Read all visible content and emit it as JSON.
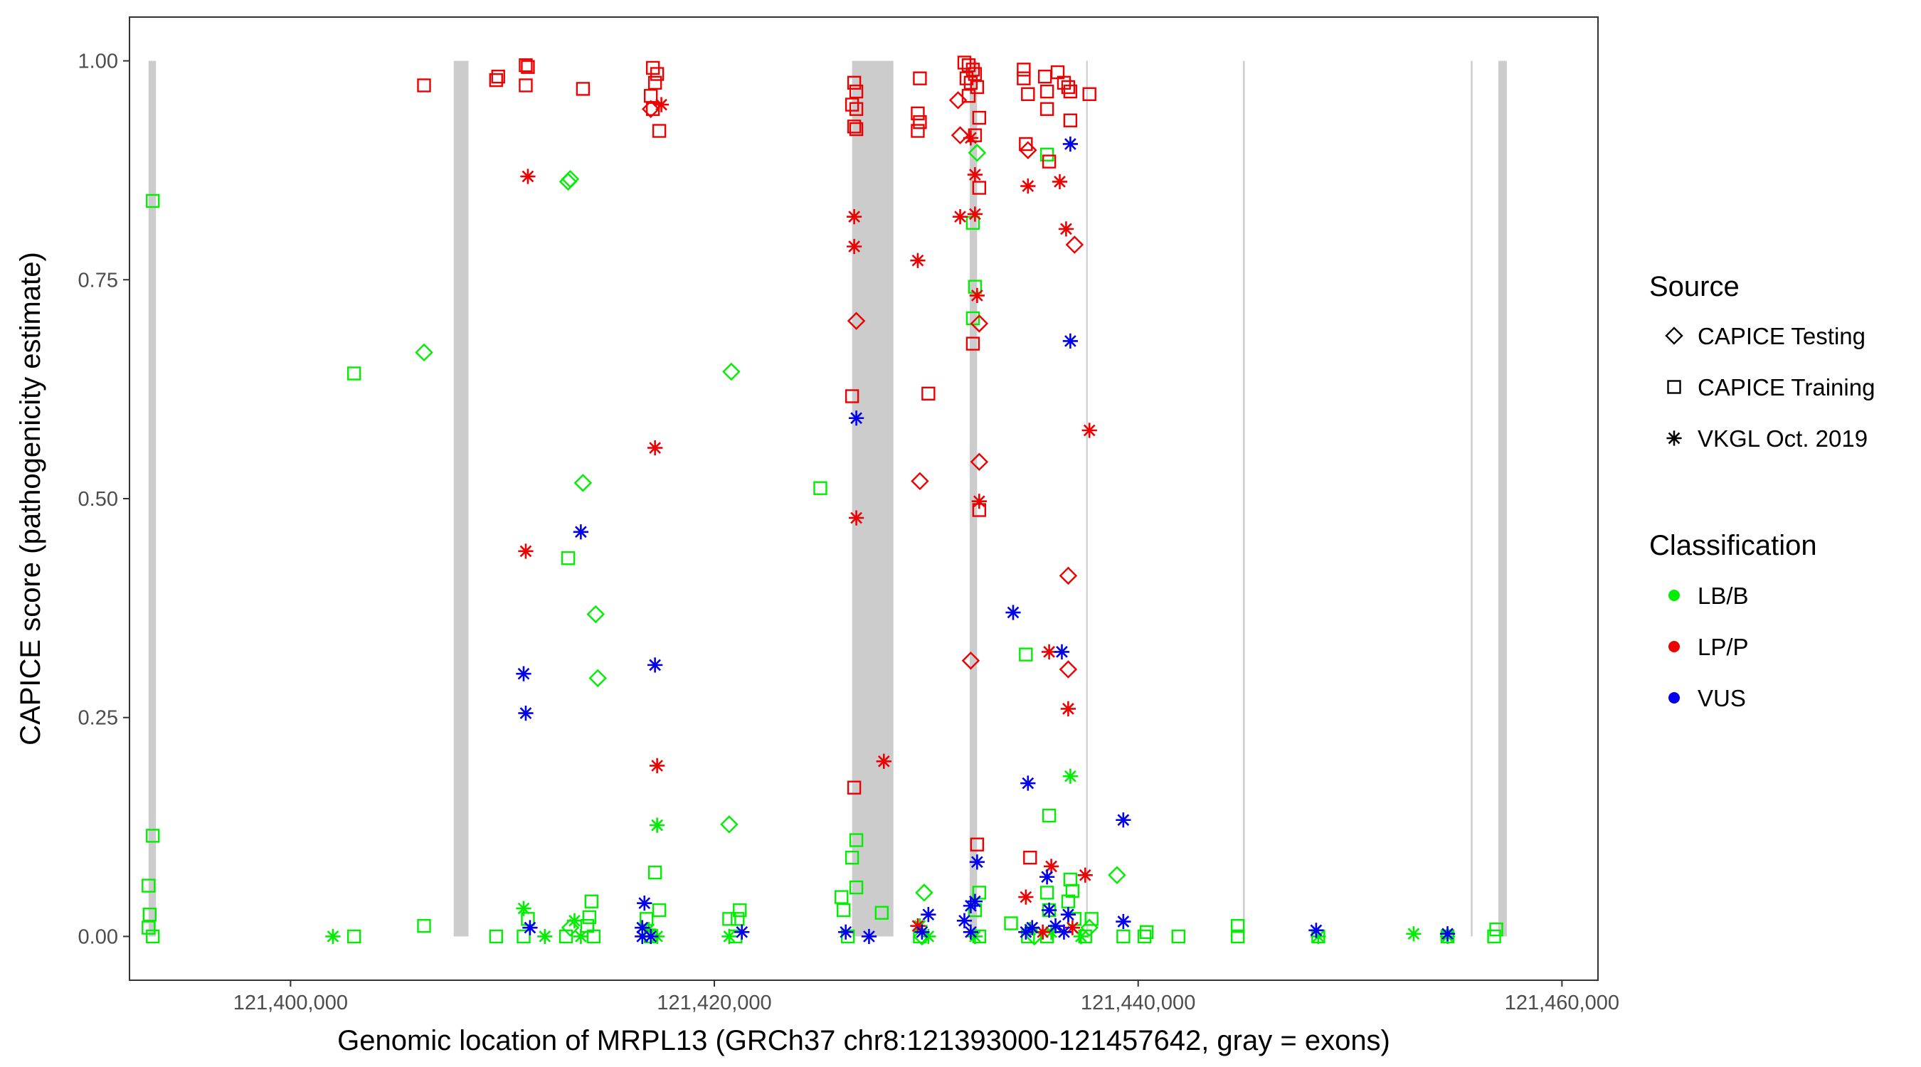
{
  "chart_data": {
    "type": "scatter",
    "title": "",
    "xlabel": "Genomic location of MRPL13 (GRCh37 chr8:121393000-121457642, gray = exons)",
    "ylabel": "CAPICE score (pathogenicity estimate)",
    "xlim": [
      121392400,
      121461700
    ],
    "ylim": [
      -0.05,
      1.05
    ],
    "grid": false,
    "x_ticks": [
      121400000,
      121420000,
      121440000,
      121460000
    ],
    "x_tick_labels": [
      "121,400,000",
      "121,420,000",
      "121,440,000",
      "121,460,000"
    ],
    "y_ticks": [
      0,
      0.25,
      0.5,
      0.75,
      1.0
    ],
    "y_tick_labels": [
      "0.00",
      "0.25",
      "0.50",
      "0.75",
      "1.00"
    ],
    "exons": [
      [
        121393300,
        121393650
      ],
      [
        121407700,
        121408400
      ],
      [
        121426500,
        121428450
      ],
      [
        121432050,
        121432400
      ],
      [
        121437550,
        121437620
      ],
      [
        121444950,
        121445030
      ],
      [
        121455700,
        121455780
      ],
      [
        121457000,
        121457400
      ]
    ],
    "colors": {
      "LB/B": "#00ee00",
      "LP/P": "#ee0000",
      "VUS": "#0000ee",
      "exon": "#cccccc"
    },
    "legend": {
      "position": "right",
      "source_title": "Source",
      "source_items": [
        {
          "label": "CAPICE Testing",
          "shape": "diamond"
        },
        {
          "label": "CAPICE Training",
          "shape": "square"
        },
        {
          "label": "VKGL Oct. 2019",
          "shape": "asterisk"
        }
      ],
      "class_title": "Classification",
      "class_items": [
        {
          "label": "LB/B",
          "color": "#00ee00"
        },
        {
          "label": "LP/P",
          "color": "#ee0000"
        },
        {
          "label": "VUS",
          "color": "#0000ee"
        }
      ]
    },
    "series": [
      {
        "name": "LB/B CAPICE Training",
        "classification": "LB/B",
        "source": "CAPICE Training",
        "points": [
          [
            121393500,
            0.84
          ],
          [
            121393500,
            0.115
          ],
          [
            121393300,
            0.058
          ],
          [
            121393350,
            0.025
          ],
          [
            121393300,
            0.01
          ],
          [
            121393500,
            0
          ],
          [
            121403000,
            0.643
          ],
          [
            121403000,
            0
          ],
          [
            121406300,
            0.012
          ],
          [
            121409700,
            0
          ],
          [
            121411200,
            0.02
          ],
          [
            121411000,
            0
          ],
          [
            121413100,
            0.432
          ],
          [
            121413000,
            0
          ],
          [
            121414200,
            0.04
          ],
          [
            121414100,
            0.022
          ],
          [
            121414000,
            0.012
          ],
          [
            121414300,
            0
          ],
          [
            121416800,
            0.02
          ],
          [
            121417200,
            0.073
          ],
          [
            121417400,
            0.03
          ],
          [
            121417000,
            0
          ],
          [
            121420700,
            0.02
          ],
          [
            121421200,
            0.03
          ],
          [
            121421100,
            0.02
          ],
          [
            121421000,
            0
          ],
          [
            121425000,
            0.512
          ],
          [
            121426000,
            0.045
          ],
          [
            121426100,
            0.03
          ],
          [
            121426500,
            0.09
          ],
          [
            121426700,
            0.11
          ],
          [
            121426700,
            0.056
          ],
          [
            121426300,
            0
          ],
          [
            121427900,
            0.027
          ],
          [
            121429700,
            0
          ],
          [
            121432200,
            0.815
          ],
          [
            121432300,
            0.742
          ],
          [
            121432200,
            0.706
          ],
          [
            121432500,
            0.05
          ],
          [
            121432300,
            0.03
          ],
          [
            121432500,
            0
          ],
          [
            121434000,
            0.015
          ],
          [
            121434700,
            0.322
          ],
          [
            121434800,
            0
          ],
          [
            121435700,
            0.893
          ],
          [
            121435800,
            0.138
          ],
          [
            121435700,
            0.05
          ],
          [
            121435800,
            0.03
          ],
          [
            121435700,
            0
          ],
          [
            121436800,
            0.065
          ],
          [
            121436900,
            0.052
          ],
          [
            121436700,
            0.04
          ],
          [
            121437000,
            0.02
          ],
          [
            121437800,
            0.02
          ],
          [
            121437500,
            0
          ],
          [
            121439300,
            0
          ],
          [
            121440300,
            0
          ],
          [
            121440400,
            0.005
          ],
          [
            121441900,
            0
          ],
          [
            121444700,
            0.012
          ],
          [
            121444700,
            0
          ],
          [
            121448500,
            0
          ],
          [
            121454600,
            0
          ],
          [
            121456900,
            0.008
          ],
          [
            121456800,
            0
          ]
        ]
      },
      {
        "name": "LB/B CAPICE Testing",
        "classification": "LB/B",
        "source": "CAPICE Testing",
        "points": [
          [
            121406300,
            0.667
          ],
          [
            121413100,
            0.862
          ],
          [
            121413200,
            0.865
          ],
          [
            121414400,
            0.368
          ],
          [
            121414500,
            0.295
          ],
          [
            121413800,
            0.518
          ],
          [
            121413200,
            0.01
          ],
          [
            121420700,
            0.128
          ],
          [
            121420800,
            0.645
          ],
          [
            121429900,
            0.05
          ],
          [
            121429800,
            0
          ],
          [
            121432400,
            0.895
          ],
          [
            121439000,
            0.07
          ],
          [
            121437700,
            0.01
          ],
          [
            121435100,
            0
          ]
        ]
      },
      {
        "name": "LB/B VKGL Oct. 2019",
        "classification": "LB/B",
        "source": "VKGL Oct. 2019",
        "points": [
          [
            121402000,
            0
          ],
          [
            121411000,
            0.032
          ],
          [
            121412000,
            0
          ],
          [
            121413400,
            0.018
          ],
          [
            121413700,
            0
          ],
          [
            121416900,
            0.008
          ],
          [
            121417300,
            0.127
          ],
          [
            121417300,
            0
          ],
          [
            121420700,
            0
          ],
          [
            121429700,
            0.012
          ],
          [
            121430100,
            0
          ],
          [
            121432300,
            0
          ],
          [
            121434900,
            0.008
          ],
          [
            121435900,
            0.005
          ],
          [
            121436800,
            0.183
          ],
          [
            121437300,
            0
          ],
          [
            121448500,
            0
          ],
          [
            121453000,
            0.003
          ],
          [
            121454600,
            0
          ]
        ]
      },
      {
        "name": "LP/P CAPICE Training",
        "classification": "LP/P",
        "source": "CAPICE Training",
        "points": [
          [
            121406300,
            0.972
          ],
          [
            121409700,
            0.978
          ],
          [
            121409800,
            0.982
          ],
          [
            121411100,
            0.995
          ],
          [
            121411200,
            0.993
          ],
          [
            121411100,
            0.972
          ],
          [
            121413800,
            0.968
          ],
          [
            121417100,
            0.992
          ],
          [
            121417300,
            0.985
          ],
          [
            121417200,
            0.975
          ],
          [
            121417000,
            0.96
          ],
          [
            121417100,
            0.945
          ],
          [
            121417400,
            0.92
          ],
          [
            121426600,
            0.975
          ],
          [
            121426700,
            0.965
          ],
          [
            121426500,
            0.95
          ],
          [
            121426700,
            0.945
          ],
          [
            121426600,
            0.925
          ],
          [
            121426700,
            0.922
          ],
          [
            121426500,
            0.617
          ],
          [
            121426600,
            0.17
          ],
          [
            121429700,
            0.98
          ],
          [
            121429600,
            0.94
          ],
          [
            121429700,
            0.93
          ],
          [
            121429600,
            0.92
          ],
          [
            121430100,
            0.62
          ],
          [
            121431800,
            0.998
          ],
          [
            121432000,
            0.995
          ],
          [
            121432200,
            0.99
          ],
          [
            121432300,
            0.985
          ],
          [
            121431900,
            0.98
          ],
          [
            121432100,
            0.975
          ],
          [
            121432400,
            0.97
          ],
          [
            121432000,
            0.96
          ],
          [
            121432500,
            0.935
          ],
          [
            121432300,
            0.915
          ],
          [
            121432500,
            0.855
          ],
          [
            121432200,
            0.677
          ],
          [
            121432400,
            0.105
          ],
          [
            121432500,
            0.487
          ],
          [
            121434600,
            0.99
          ],
          [
            121434600,
            0.98
          ],
          [
            121435600,
            0.982
          ],
          [
            121435700,
            0.965
          ],
          [
            121434800,
            0.962
          ],
          [
            121435700,
            0.945
          ],
          [
            121434700,
            0.905
          ],
          [
            121435800,
            0.885
          ],
          [
            121436200,
            0.987
          ],
          [
            121436500,
            0.975
          ],
          [
            121436700,
            0.97
          ],
          [
            121436800,
            0.965
          ],
          [
            121437700,
            0.962
          ],
          [
            121436800,
            0.932
          ],
          [
            121434900,
            0.09
          ]
        ]
      },
      {
        "name": "LP/P CAPICE Testing",
        "classification": "LP/P",
        "source": "CAPICE Testing",
        "points": [
          [
            121417000,
            0.945
          ],
          [
            121426700,
            0.703
          ],
          [
            121429700,
            0.52
          ],
          [
            121431500,
            0.955
          ],
          [
            121431600,
            0.915
          ],
          [
            121432100,
            0.315
          ],
          [
            121432500,
            0.7
          ],
          [
            121432500,
            0.542
          ],
          [
            121434800,
            0.898
          ],
          [
            121436700,
            0.412
          ],
          [
            121436700,
            0.305
          ],
          [
            121437000,
            0.79
          ]
        ]
      },
      {
        "name": "LP/P VKGL Oct. 2019",
        "classification": "LP/P",
        "source": "VKGL Oct. 2019",
        "points": [
          [
            121411200,
            0.868
          ],
          [
            121411100,
            0.44
          ],
          [
            121417200,
            0.558
          ],
          [
            121417300,
            0.195
          ],
          [
            121417500,
            0.95
          ],
          [
            121426600,
            0.822
          ],
          [
            121426600,
            0.788
          ],
          [
            121426700,
            0.478
          ],
          [
            121429600,
            0.772
          ],
          [
            121428000,
            0.2
          ],
          [
            121429600,
            0.012
          ],
          [
            121431600,
            0.822
          ],
          [
            121432100,
            0.912
          ],
          [
            121432300,
            0.825
          ],
          [
            121432300,
            0.87
          ],
          [
            121432400,
            0.732
          ],
          [
            121432500,
            0.497
          ],
          [
            121434800,
            0.857
          ],
          [
            121435800,
            0.325
          ],
          [
            121434700,
            0.045
          ],
          [
            121435900,
            0.08
          ],
          [
            121436300,
            0.862
          ],
          [
            121436600,
            0.808
          ],
          [
            121436700,
            0.26
          ],
          [
            121437500,
            0.07
          ],
          [
            121437700,
            0.578
          ],
          [
            121435500,
            0.005
          ],
          [
            121436900,
            0.01
          ]
        ]
      },
      {
        "name": "VUS VKGL Oct. 2019",
        "classification": "VUS",
        "source": "VKGL Oct. 2019",
        "points": [
          [
            121411000,
            0.3
          ],
          [
            121411100,
            0.255
          ],
          [
            121411300,
            0.01
          ],
          [
            121413700,
            0.462
          ],
          [
            121416700,
            0.038
          ],
          [
            121417200,
            0.31
          ],
          [
            121416600,
            0.01
          ],
          [
            121416600,
            0
          ],
          [
            121417000,
            0
          ],
          [
            121421300,
            0.005
          ],
          [
            121426200,
            0.005
          ],
          [
            121427300,
            0
          ],
          [
            121429800,
            0.005
          ],
          [
            121430100,
            0.025
          ],
          [
            121431800,
            0.018
          ],
          [
            121432100,
            0.035
          ],
          [
            121432300,
            0.04
          ],
          [
            121432400,
            0.085
          ],
          [
            121432100,
            0.005
          ],
          [
            121426700,
            0.592
          ],
          [
            121434100,
            0.37
          ],
          [
            121434800,
            0.175
          ],
          [
            121434700,
            0.005
          ],
          [
            121435000,
            0.01
          ],
          [
            121435700,
            0.068
          ],
          [
            121435800,
            0.03
          ],
          [
            121436400,
            0.325
          ],
          [
            121436800,
            0.905
          ],
          [
            121436800,
            0.68
          ],
          [
            121436100,
            0.012
          ],
          [
            121436700,
            0.025
          ],
          [
            121436500,
            0.005
          ],
          [
            121439300,
            0.133
          ],
          [
            121439300,
            0.017
          ],
          [
            121448400,
            0.007
          ],
          [
            121454600,
            0.003
          ]
        ]
      }
    ]
  }
}
